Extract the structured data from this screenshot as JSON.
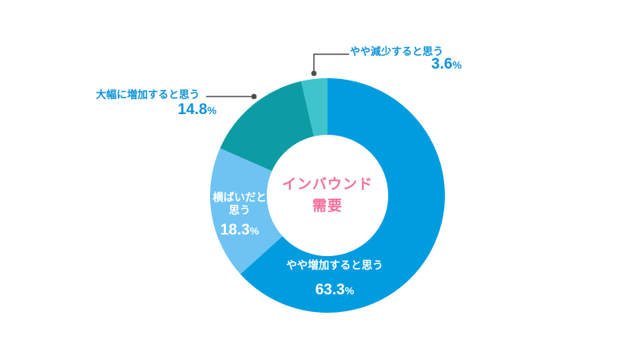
{
  "chart_data": {
    "type": "donut",
    "title": "インバウンド需要",
    "center_label_lines": [
      "インバウンド",
      "需要"
    ],
    "unit": "%",
    "start_angle_deg": 0,
    "direction": "clockwise",
    "legend": "none",
    "segments": [
      {
        "label": "やや増加すると思う",
        "value": 63.3,
        "color": "#009CE0",
        "label_placement": "inside",
        "label_color": "#FFFFFF"
      },
      {
        "label": "横ばいだと思う",
        "value": 18.3,
        "color": "#6EC3F3",
        "label_placement": "inside",
        "label_color": "#FFFFFF"
      },
      {
        "label": "大幅に増加すると思う",
        "value": 14.8,
        "color": "#0D9CA4",
        "label_placement": "outside",
        "label_color": "#0C93D8"
      },
      {
        "label": "やや減少すると思う",
        "value": 3.6,
        "color": "#3FC4CE",
        "label_placement": "outside",
        "label_color": "#0C93D8"
      }
    ]
  },
  "colors": {
    "background": "#FFFFFF",
    "center_text": "#F4719B",
    "outside_label_text": "#0C93D8",
    "inside_label_text": "#FFFFFF",
    "leader_line": "#4D4D4D"
  }
}
